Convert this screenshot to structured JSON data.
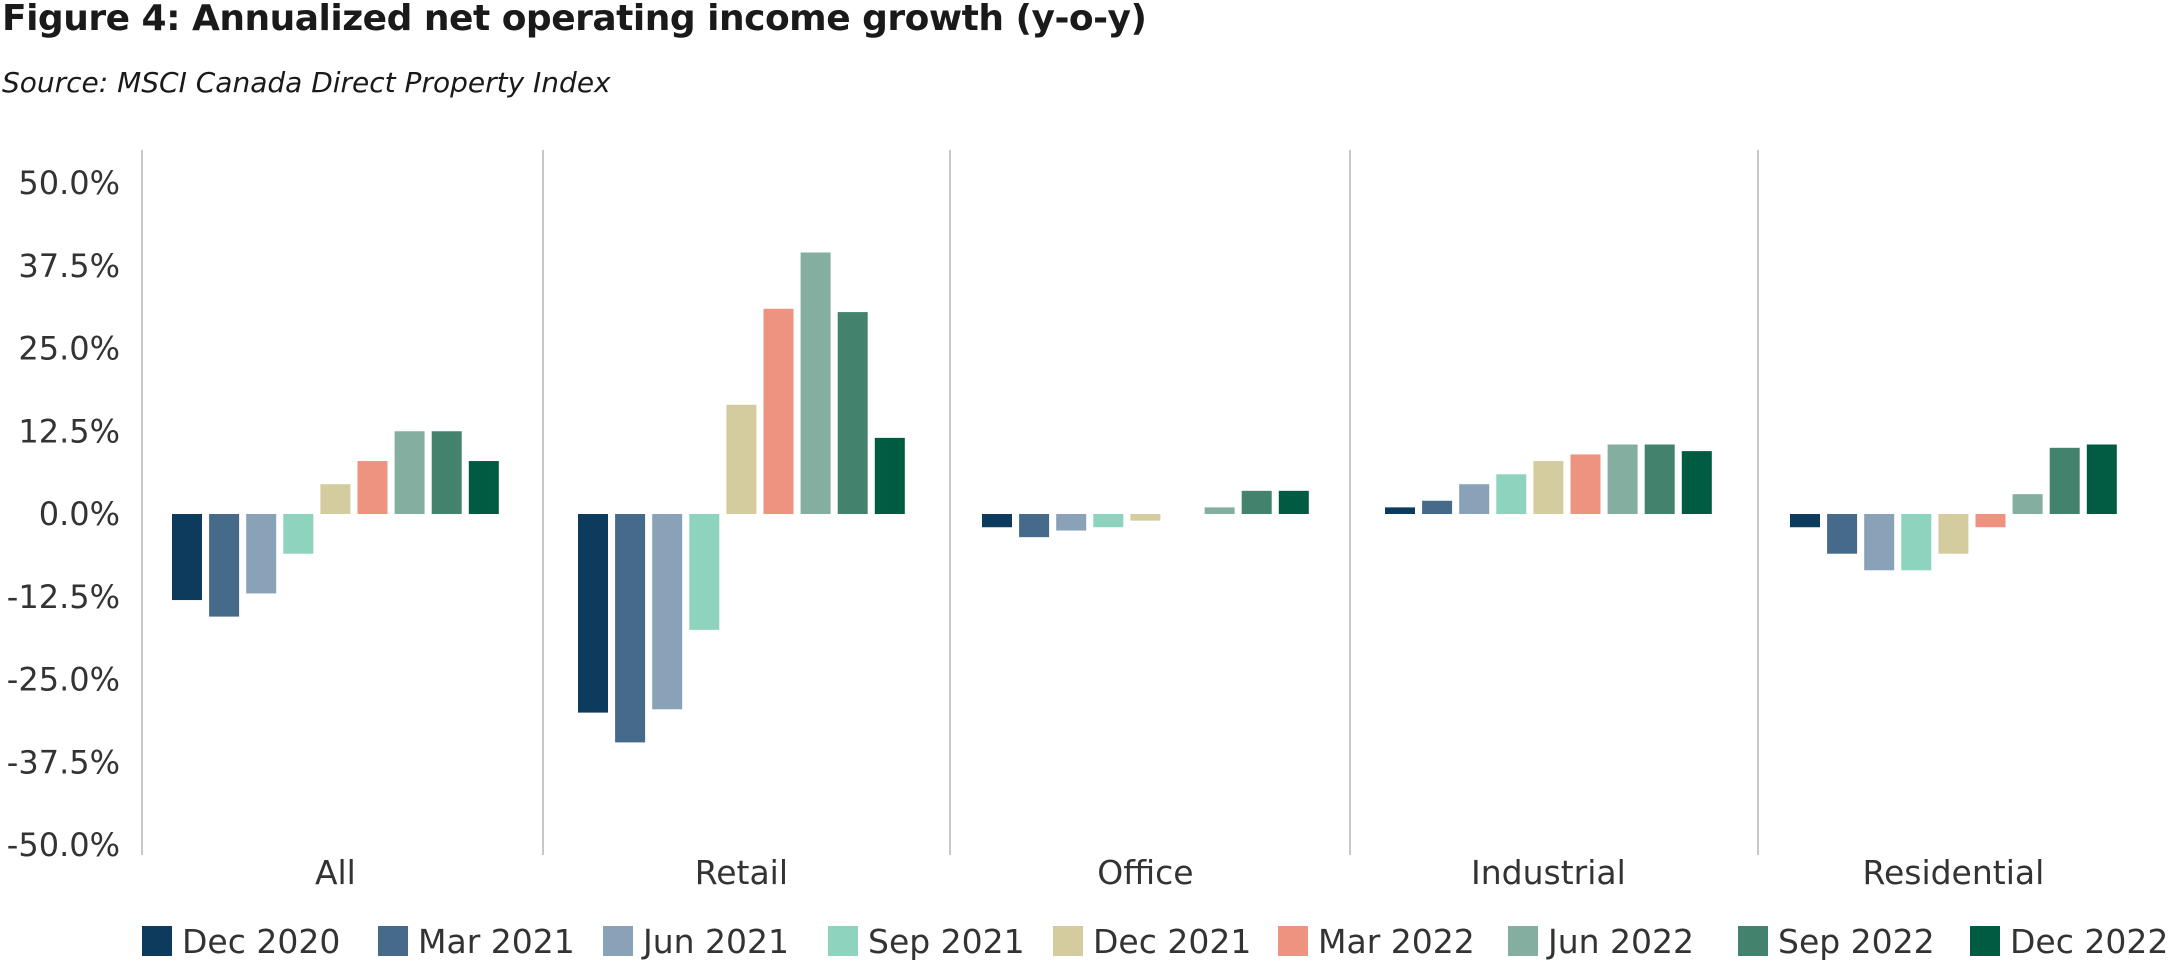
{
  "title": "Figure 4: Annualized net operating income growth (y-o-y)",
  "subtitle": "Source: MSCI Canada Direct Property Index",
  "chart_data": {
    "type": "bar",
    "ylim": [
      -50,
      50
    ],
    "y_ticks": [
      "50.0%",
      "37.5%",
      "25.0%",
      "12.5%",
      "0.0%",
      "-12.5%",
      "-25.0%",
      "-37.5%",
      "-50.0%"
    ],
    "y_tick_values": [
      50,
      37.5,
      25,
      12.5,
      0,
      -12.5,
      -25,
      -37.5,
      -50
    ],
    "grid": false,
    "legend_position": "bottom",
    "categories": [
      "All",
      "Retail",
      "Office",
      "Industrial",
      "Residential"
    ],
    "series": [
      {
        "name": "Dec 2020",
        "color": "#0d3b5e",
        "values": [
          -13,
          -30,
          -2,
          1,
          -2
        ]
      },
      {
        "name": "Mar 2021",
        "color": "#466a89",
        "values": [
          -15.5,
          -34.5,
          -3.5,
          2,
          -6
        ]
      },
      {
        "name": "Jun 2021",
        "color": "#8aa2b8",
        "values": [
          -12,
          -29.5,
          -2.5,
          4.5,
          -8.5
        ]
      },
      {
        "name": "Sep 2021",
        "color": "#8ed3bd",
        "values": [
          -6,
          -17.5,
          -2,
          6,
          -8.5
        ]
      },
      {
        "name": "Dec 2021",
        "color": "#d4cc9e",
        "values": [
          4.5,
          16.5,
          -1,
          8,
          -6
        ]
      },
      {
        "name": "Mar 2022",
        "color": "#ee9380",
        "values": [
          8,
          31,
          0,
          9,
          -2
        ]
      },
      {
        "name": "Jun 2022",
        "color": "#84ae9f",
        "values": [
          12.5,
          39.5,
          1,
          10.5,
          3
        ]
      },
      {
        "name": "Sep 2022",
        "color": "#43836e",
        "values": [
          12.5,
          30.5,
          3.5,
          10.5,
          10
        ]
      },
      {
        "name": "Dec 2022",
        "color": "#005b43",
        "values": [
          8,
          11.5,
          3.5,
          9.5,
          10.5
        ]
      }
    ]
  }
}
